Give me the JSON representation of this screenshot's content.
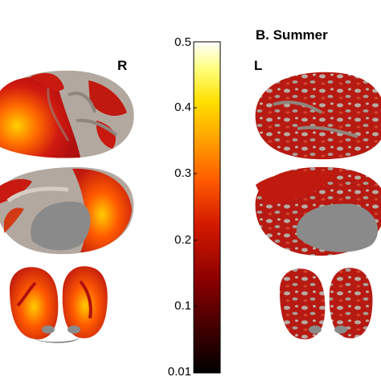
{
  "panel_title": "B. Summer",
  "hemisphere_labels": {
    "right": "R",
    "left": "L"
  },
  "colorbar": {
    "ticks": [
      "0.5",
      "0.4",
      "0.3",
      "0.2",
      "0.1",
      "0.01"
    ],
    "range": [
      0.01,
      0.5
    ],
    "colormap": [
      "#000000",
      "#3a0000",
      "#8b0000",
      "#d41a00",
      "#ff5a00",
      "#ff9f00",
      "#ffe000",
      "#ffff80",
      "#ffffff"
    ]
  },
  "colors": {
    "cortex_gray": "#b3a89f",
    "medial_wall": "#8a8a8a",
    "activation_red": "#c81a10",
    "activation_yellow": "#ffd000"
  }
}
